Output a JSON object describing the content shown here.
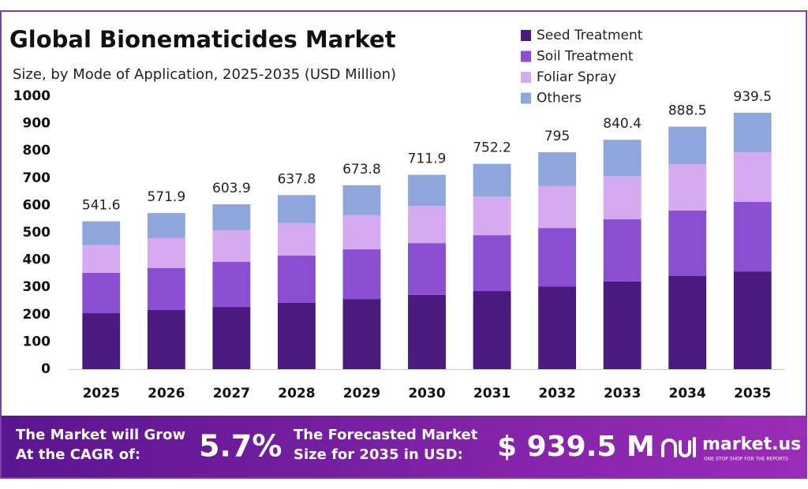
{
  "chart_data": {
    "type": "stacked_bar",
    "title": "Global Bionematicides Market",
    "subtitle": "Size, by Mode of Application, 2025-2035 (USD Million)",
    "categories": [
      "2025",
      "2026",
      "2027",
      "2028",
      "2029",
      "2030",
      "2031",
      "2032",
      "2033",
      "2034",
      "2035"
    ],
    "series": [
      {
        "name": "Seed Treatment",
        "color": "#4b1a7f",
        "values": [
          205,
          217,
          228,
          243,
          257,
          272,
          286,
          303,
          321,
          341,
          358
        ]
      },
      {
        "name": "Soil Treatment",
        "color": "#8a4fd0",
        "values": [
          148,
          153,
          165,
          173,
          182,
          190,
          205,
          214,
          228,
          240,
          255
        ]
      },
      {
        "name": "Foliar Spray",
        "color": "#d6aaee",
        "values": [
          102,
          110,
          116,
          119,
          125,
          136,
          142,
          154,
          159,
          170,
          182
        ]
      },
      {
        "name": "Others",
        "color": "#8ea6dc",
        "values": [
          86.6,
          91.9,
          94.9,
          102.8,
          109.8,
          113.9,
          119.2,
          124,
          132.4,
          137.5,
          144.5
        ]
      }
    ],
    "totals": [
      541.6,
      571.9,
      603.9,
      637.8,
      673.8,
      711.9,
      752.2,
      795.0,
      840.4,
      888.5,
      939.5
    ],
    "ylim": [
      0,
      1000
    ],
    "yticks": [
      0,
      100,
      200,
      300,
      400,
      500,
      600,
      700,
      800,
      900,
      1000
    ],
    "grid": false,
    "legend": "top-right"
  },
  "footer": {
    "cagr_text": [
      "The Market will Grow",
      "At the CAGR of:"
    ],
    "cagr_value": "5.7%",
    "forecast_text": [
      "The Forecasted Market",
      "Size for 2035 in USD:"
    ],
    "forecast_value": "$ 939.5 M",
    "brand": "market.us",
    "tagline": "ONE STOP SHOP FOR THE REPORTS"
  }
}
